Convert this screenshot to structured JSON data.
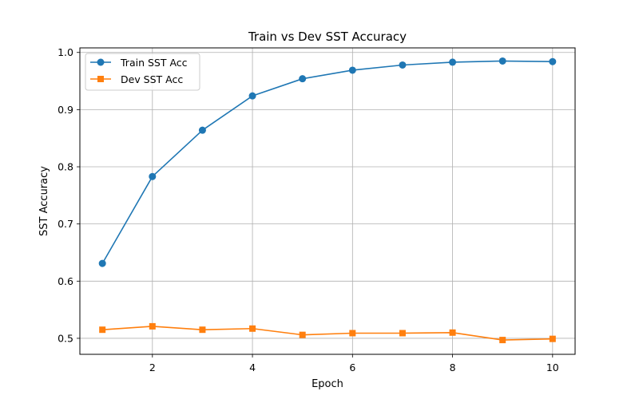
{
  "chart_data": {
    "type": "line",
    "title": "Train vs Dev SST Accuracy",
    "xlabel": "Epoch",
    "ylabel": "SST Accuracy",
    "x": [
      1,
      2,
      3,
      4,
      5,
      6,
      7,
      8,
      9,
      10
    ],
    "xlim": [
      0.55,
      10.45
    ],
    "ylim": [
      0.472,
      1.008
    ],
    "xticks": [
      2,
      4,
      6,
      8,
      10
    ],
    "xtick_labels": [
      "2",
      "4",
      "6",
      "8",
      "10"
    ],
    "yticks": [
      0.5,
      0.6,
      0.7,
      0.8,
      0.9,
      1.0
    ],
    "ytick_labels": [
      "0.5",
      "0.6",
      "0.7",
      "0.8",
      "0.9",
      "1.0"
    ],
    "grid": true,
    "legend_position": "top-left",
    "series": [
      {
        "name": "Train SST Acc",
        "values": [
          0.631,
          0.783,
          0.864,
          0.924,
          0.954,
          0.969,
          0.978,
          0.983,
          0.985,
          0.984
        ],
        "color": "#1f77b4",
        "marker": "circle"
      },
      {
        "name": "Dev SST Acc",
        "values": [
          0.515,
          0.521,
          0.515,
          0.517,
          0.506,
          0.509,
          0.509,
          0.51,
          0.497,
          0.499
        ],
        "color": "#ff7f0e",
        "marker": "square"
      }
    ]
  }
}
